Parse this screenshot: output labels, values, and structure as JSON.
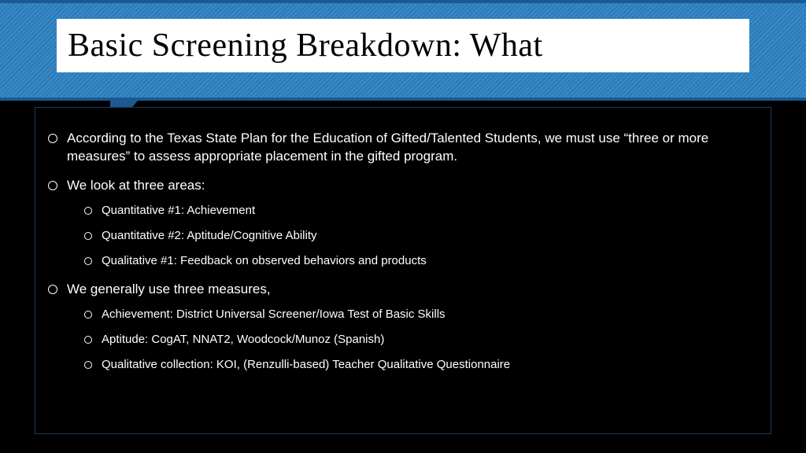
{
  "slide": {
    "title": "Basic Screening Breakdown:  What",
    "colors": {
      "header_stripe_a": "#2a7ab8",
      "header_stripe_b": "#3a8ac8",
      "header_border": "#1a5a90",
      "body_bg": "#000000",
      "body_border": "#1e3a52",
      "text": "#ffffff",
      "title_bg": "#ffffff",
      "title_text": "#000000"
    },
    "bullets": [
      {
        "text": "According to the Texas State Plan for the Education of Gifted/Talented Students, we must use “three or more measures” to assess appropriate placement in the gifted program.",
        "children": []
      },
      {
        "text": "We look at three areas:",
        "children": [
          {
            "text": "Quantitative #1: Achievement"
          },
          {
            "text": "Quantitative #2: Aptitude/Cognitive Ability"
          },
          {
            "text": "Qualitative #1:  Feedback on observed behaviors and products"
          }
        ]
      },
      {
        "text": "We generally use three measures,",
        "children": [
          {
            "text": "Achievement: District Universal Screener/Iowa Test of Basic Skills"
          },
          {
            "text": "Aptitude: CogAT, NNAT2, Woodcock/Munoz (Spanish)"
          },
          {
            "text": "Qualitative collection:  KOI, (Renzulli-based) Teacher Qualitative Questionnaire"
          }
        ]
      }
    ]
  }
}
